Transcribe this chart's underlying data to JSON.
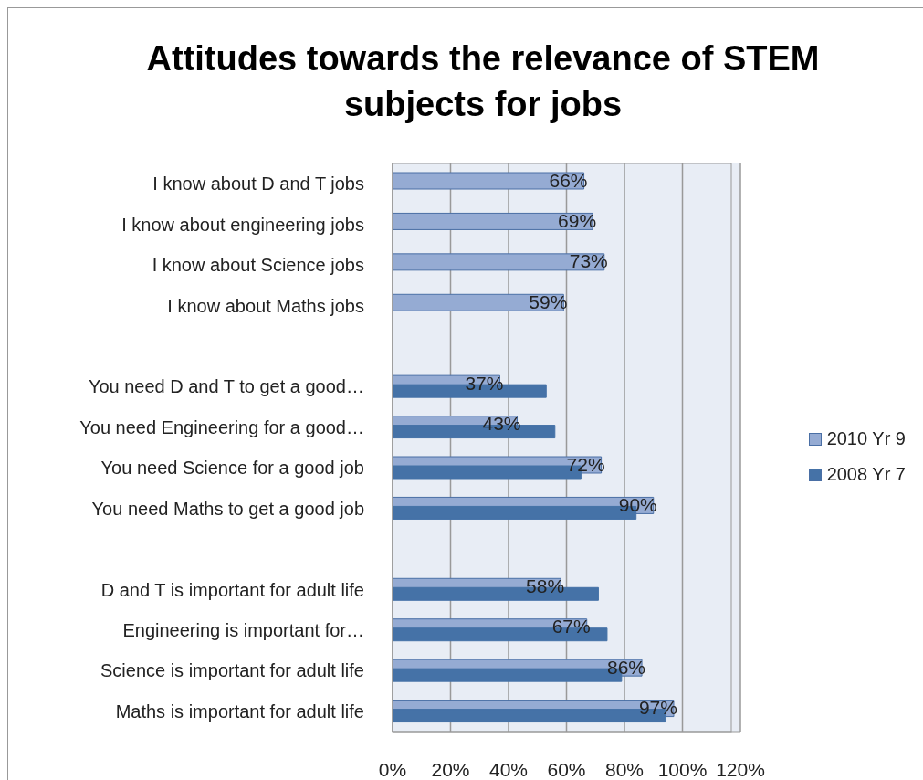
{
  "chart_data": {
    "type": "bar",
    "orientation": "horizontal",
    "title": "Attitudes towards the relevance of STEM subjects for jobs",
    "categories": [
      "I know about D and T jobs",
      "I know about engineering jobs",
      "I know about Science jobs",
      "I know about Maths jobs",
      null,
      "You need D and T to get a good…",
      "You need Engineering for a good…",
      "You need Science for a good job",
      "You need Maths to get a good job",
      null,
      "D and T is important for adult life",
      "Engineering is important for…",
      "Science is important for adult life",
      "Maths is important for adult life"
    ],
    "series": [
      {
        "name": "2010 Yr 9",
        "color": "#95abd3",
        "values": [
          66,
          69,
          73,
          59,
          null,
          37,
          43,
          72,
          90,
          null,
          58,
          67,
          86,
          97
        ],
        "value_labels": [
          "66%",
          "69%",
          "73%",
          "59%",
          null,
          "37%",
          "43%",
          "72%",
          "90%",
          null,
          "58%",
          "67%",
          "86%",
          "97%"
        ]
      },
      {
        "name": "2008 Yr 7",
        "color": "#4572a7",
        "values": [
          null,
          null,
          null,
          null,
          null,
          53,
          56,
          65,
          84,
          null,
          71,
          74,
          79,
          94
        ]
      }
    ],
    "xlim": [
      0,
      120
    ],
    "xticks": [
      {
        "value": 0,
        "label": "0%"
      },
      {
        "value": 20,
        "label": "20%"
      },
      {
        "value": 40,
        "label": "40%"
      },
      {
        "value": 60,
        "label": "60%"
      },
      {
        "value": 80,
        "label": "80%"
      },
      {
        "value": 100,
        "label": "100%"
      },
      {
        "value": 120,
        "label": "120%"
      }
    ],
    "grid": "x",
    "legend": "right"
  }
}
